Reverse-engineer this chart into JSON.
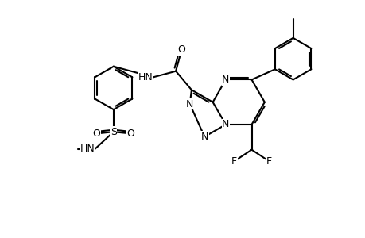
{
  "bg_color": "#ffffff",
  "lw": 1.5,
  "fs": 9.0,
  "dbo": 0.055,
  "fig_w": 4.6,
  "fig_h": 3.0,
  "dpi": 100,
  "xlim": [
    0,
    10
  ],
  "ylim": [
    0,
    6.5
  ]
}
